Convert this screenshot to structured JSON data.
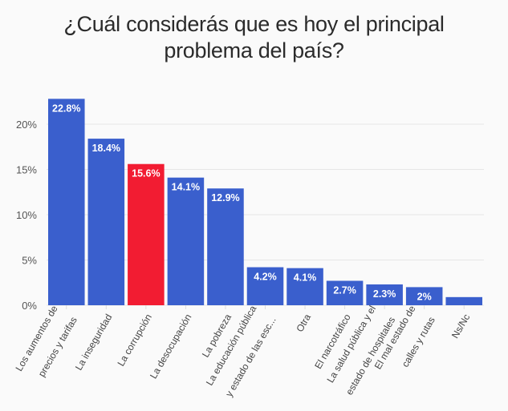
{
  "chart_data": {
    "type": "bar",
    "title": "¿Cuál considerás que es hoy el principal problema del país?",
    "title_lines": [
      "¿Cuál considerás que es hoy el principal",
      "problema del país?"
    ],
    "xlabel": "",
    "ylabel": "",
    "ylim": [
      0,
      24
    ],
    "yticks": [
      0,
      5,
      10,
      15,
      20
    ],
    "ytick_labels": [
      "0%",
      "5%",
      "10%",
      "15%",
      "20%"
    ],
    "grid": true,
    "legend": "none",
    "categories": [
      [
        "Los aumentos de",
        "precios y tarifas"
      ],
      [
        "La inseguridad"
      ],
      [
        "La corrupción"
      ],
      [
        "La desocupación"
      ],
      [
        "La pobreza"
      ],
      [
        "La educación pública",
        "y estado de las esc..."
      ],
      [
        "Otra"
      ],
      [
        "El narcotráfico"
      ],
      [
        "La salud pública y el",
        "estado de hospitales"
      ],
      [
        "El mal estado de",
        "calles y rutas"
      ],
      [
        "Ns/Nc"
      ]
    ],
    "values": [
      22.8,
      18.4,
      15.6,
      14.1,
      12.9,
      4.2,
      4.1,
      2.7,
      2.3,
      2.0,
      0.9
    ],
    "data_labels": [
      "22.8%",
      "18.4%",
      "15.6%",
      "14.1%",
      "12.9%",
      "4.2%",
      "4.1%",
      "2.7%",
      "2.3%",
      "2%",
      ""
    ],
    "colors": {
      "default": "#3a5fcd",
      "highlight": "#f21c32",
      "gridline": "#e6e6e6"
    },
    "highlight_index": 2
  }
}
